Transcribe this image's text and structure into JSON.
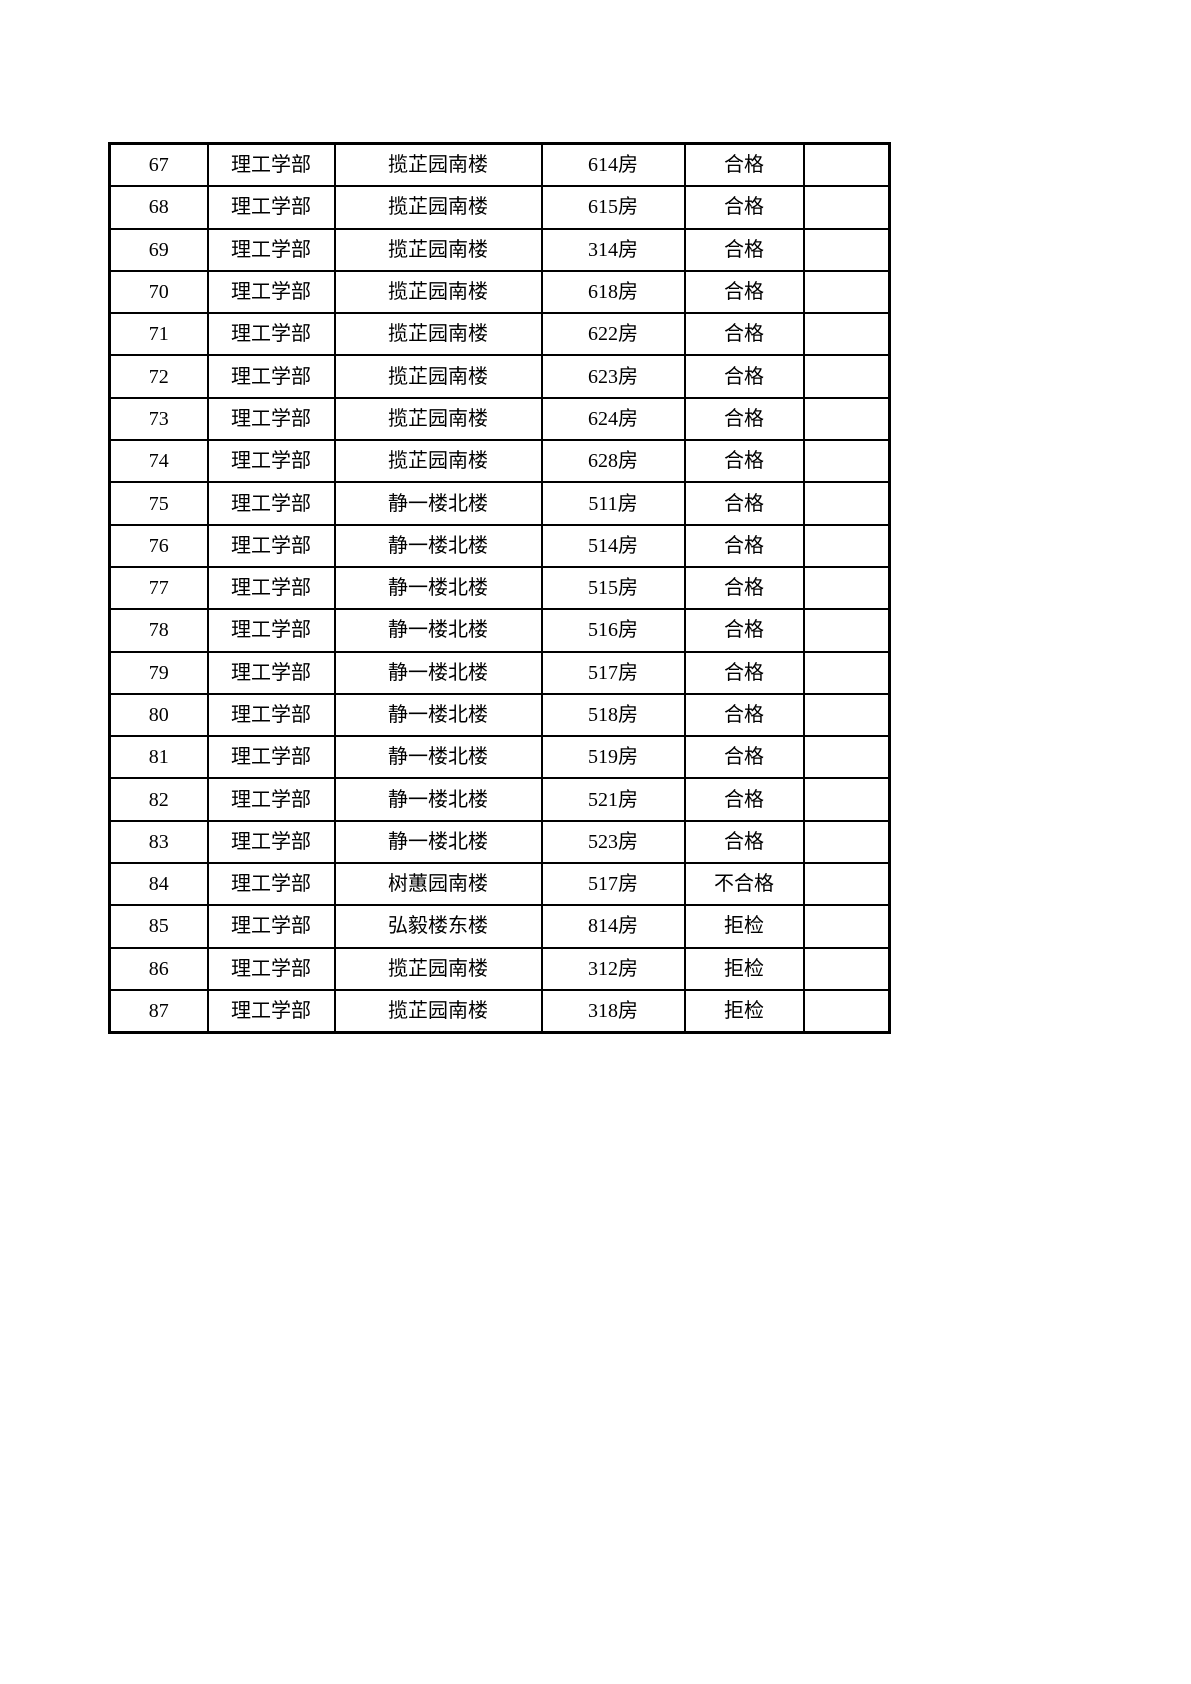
{
  "page": {
    "background_color": "#ffffff",
    "border_color": "#000000",
    "text_color": "#000000"
  },
  "table": {
    "columns": [
      {
        "key": "index",
        "name": "row-number"
      },
      {
        "key": "department",
        "name": "department"
      },
      {
        "key": "building",
        "name": "building"
      },
      {
        "key": "room",
        "name": "room"
      },
      {
        "key": "result",
        "name": "inspection-result"
      },
      {
        "key": "remark",
        "name": "remark"
      }
    ],
    "rows": [
      {
        "index": "67",
        "department": "理工学部",
        "building": "揽芷园南楼",
        "room": "614房",
        "result": "合格",
        "remark": ""
      },
      {
        "index": "68",
        "department": "理工学部",
        "building": "揽芷园南楼",
        "room": "615房",
        "result": "合格",
        "remark": ""
      },
      {
        "index": "69",
        "department": "理工学部",
        "building": "揽芷园南楼",
        "room": "314房",
        "result": "合格",
        "remark": ""
      },
      {
        "index": "70",
        "department": "理工学部",
        "building": "揽芷园南楼",
        "room": "618房",
        "result": "合格",
        "remark": ""
      },
      {
        "index": "71",
        "department": "理工学部",
        "building": "揽芷园南楼",
        "room": "622房",
        "result": "合格",
        "remark": ""
      },
      {
        "index": "72",
        "department": "理工学部",
        "building": "揽芷园南楼",
        "room": "623房",
        "result": "合格",
        "remark": ""
      },
      {
        "index": "73",
        "department": "理工学部",
        "building": "揽芷园南楼",
        "room": "624房",
        "result": "合格",
        "remark": ""
      },
      {
        "index": "74",
        "department": "理工学部",
        "building": "揽芷园南楼",
        "room": "628房",
        "result": "合格",
        "remark": ""
      },
      {
        "index": "75",
        "department": "理工学部",
        "building": "静一楼北楼",
        "room": "511房",
        "result": "合格",
        "remark": ""
      },
      {
        "index": "76",
        "department": "理工学部",
        "building": "静一楼北楼",
        "room": "514房",
        "result": "合格",
        "remark": ""
      },
      {
        "index": "77",
        "department": "理工学部",
        "building": "静一楼北楼",
        "room": "515房",
        "result": "合格",
        "remark": ""
      },
      {
        "index": "78",
        "department": "理工学部",
        "building": "静一楼北楼",
        "room": "516房",
        "result": "合格",
        "remark": ""
      },
      {
        "index": "79",
        "department": "理工学部",
        "building": "静一楼北楼",
        "room": "517房",
        "result": "合格",
        "remark": ""
      },
      {
        "index": "80",
        "department": "理工学部",
        "building": "静一楼北楼",
        "room": "518房",
        "result": "合格",
        "remark": ""
      },
      {
        "index": "81",
        "department": "理工学部",
        "building": "静一楼北楼",
        "room": "519房",
        "result": "合格",
        "remark": ""
      },
      {
        "index": "82",
        "department": "理工学部",
        "building": "静一楼北楼",
        "room": "521房",
        "result": "合格",
        "remark": ""
      },
      {
        "index": "83",
        "department": "理工学部",
        "building": "静一楼北楼",
        "room": "523房",
        "result": "合格",
        "remark": ""
      },
      {
        "index": "84",
        "department": "理工学部",
        "building": "树蕙园南楼",
        "room": "517房",
        "result": "不合格",
        "remark": ""
      },
      {
        "index": "85",
        "department": "理工学部",
        "building": "弘毅楼东楼",
        "room": "814房",
        "result": "拒检",
        "remark": ""
      },
      {
        "index": "86",
        "department": "理工学部",
        "building": "揽芷园南楼",
        "room": "312房",
        "result": "拒检",
        "remark": ""
      },
      {
        "index": "87",
        "department": "理工学部",
        "building": "揽芷园南楼",
        "room": "318房",
        "result": "拒检",
        "remark": ""
      }
    ]
  }
}
